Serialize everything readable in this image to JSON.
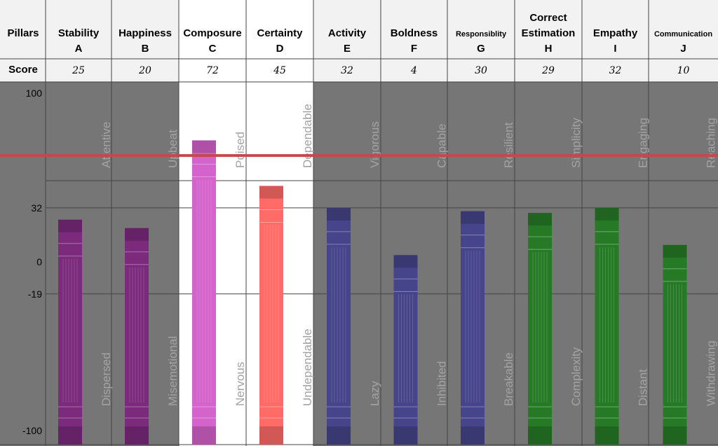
{
  "chart_data": {
    "type": "bar",
    "row_labels": {
      "pillars": "Pillars",
      "score": "Score"
    },
    "categories": [
      {
        "name": "Stability",
        "letter": "A",
        "score": "25",
        "value": 25,
        "top_word": "Attentive",
        "bottom_word": "Dispersed",
        "color": "#7b2a7c",
        "highlight": false
      },
      {
        "name": "Happiness",
        "letter": "B",
        "score": "20",
        "value": 20,
        "top_word": "Upbeat",
        "bottom_word": "Misemotional",
        "color": "#7b2a7c",
        "highlight": false
      },
      {
        "name": "Composure",
        "letter": "C",
        "score": "72",
        "value": 72,
        "top_word": "Poised",
        "bottom_word": "Nervous",
        "color": "#d463cc",
        "highlight": true
      },
      {
        "name": "Certainty",
        "letter": "D",
        "score": "45",
        "value": 45,
        "top_word": "Dependable",
        "bottom_word": "Undependable",
        "color": "#ff6b66",
        "highlight": true
      },
      {
        "name": "Activity",
        "letter": "E",
        "score": "32",
        "value": 32,
        "top_word": "Vigorous",
        "bottom_word": "Lazy",
        "color": "#46448a",
        "highlight": false
      },
      {
        "name": "Boldness",
        "letter": "F",
        "score": "4",
        "value": 4,
        "top_word": "Capable",
        "bottom_word": "Inhibited",
        "color": "#46448a",
        "highlight": false
      },
      {
        "name": "Responsiblity",
        "letter": "G",
        "score": "30",
        "value": 30,
        "top_word": "Resilient",
        "bottom_word": "Breakable",
        "color": "#46448a",
        "highlight": false
      },
      {
        "name": "Correct Estimation",
        "letter": "H",
        "score": "29",
        "value": 29,
        "top_word": "Simplicity",
        "bottom_word": "Complexity",
        "color": "#267a26",
        "highlight": false
      },
      {
        "name": "Empathy",
        "letter": "I",
        "score": "32",
        "value": 32,
        "top_word": "Engaging",
        "bottom_word": "Distant",
        "color": "#267a26",
        "highlight": false
      },
      {
        "name": "Communication",
        "letter": "J",
        "score": "10",
        "value": 10,
        "top_word": "Reaching",
        "bottom_word": "Withdrawing",
        "color": "#267a26",
        "highlight": false
      }
    ],
    "y_ticks": [
      "100",
      "32",
      "0",
      "-19",
      "-100"
    ],
    "y_tick_values": [
      100,
      32,
      0,
      -19,
      -100
    ],
    "ylim": [
      -100,
      100
    ],
    "reference_line": {
      "value": 63,
      "color": "#c4484e"
    },
    "colors": {
      "background": "#767676",
      "highlight_background": "#ffffff",
      "header_background": "#f2f2f2",
      "grid": "#444444"
    }
  }
}
